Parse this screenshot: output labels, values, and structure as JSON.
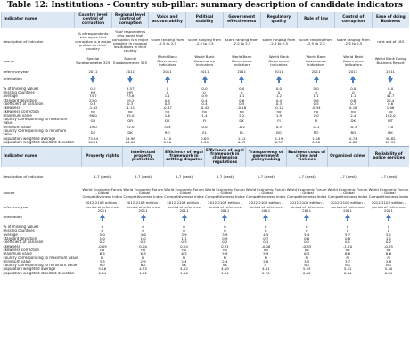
{
  "title": "Table 12: Institutions - Country sub-pillar: summary description of candidate indicators",
  "row_labels": {
    "indicator": "Indicator name",
    "description": "description of indicator",
    "source": "source",
    "reference_year": "reference year",
    "orientation": "orientation"
  },
  "stat_labels": [
    "% of missing values",
    "missing countries",
    "average",
    "standard deviation",
    "coefficient of variation",
    "skewness",
    "skewness correction",
    "maximum value",
    "country corresponding to maximum value",
    "minimum value",
    "country corresponding to minimum value",
    "population weighted average",
    "population weighted standard deviation"
  ],
  "table1": {
    "indicators": [
      {
        "name": "Country level control of corruption",
        "description": "% of respondents who agree that corruption is a major problem in their country",
        "source": "Special Eurobarometer 325",
        "reference_year": "2011",
        "orientation": "down",
        "stats": [
          "0.0",
          "HR",
          "74.7",
          "23.0",
          "0.3",
          "-1.02",
          "no",
          "98.0",
          "GR",
          "19.0",
          "DK",
          "73.34",
          "16.91"
        ]
      },
      {
        "name": "Regional level control of corruption",
        "description": "% of respondents who agree that corruption is a major problem in regional institutions in their country",
        "source": "Special Eurobarometer 325",
        "reference_year": "2011",
        "orientation": "down",
        "stats": [
          "3.57",
          "HR",
          "73.6",
          "19.2",
          "0.3",
          "-1.11",
          "no",
          "95.0",
          "GR",
          "22.0",
          "DK",
          "74.98",
          "14.60"
        ]
      },
      {
        "name": "Voice and accountability",
        "description": "score ranging from -2.5 to 2.5",
        "source": "World Bank Governance Indicators",
        "reference_year": "2011",
        "orientation": "up",
        "stats": [
          "0",
          "0",
          "1.1",
          "0.4",
          "0.3",
          "-0.47",
          "no",
          "1.6",
          "DK",
          "-0.4",
          "RO",
          "1.10",
          "0.26"
        ]
      },
      {
        "name": "Political stability",
        "description": "score ranging from -2.5 to 2.5",
        "source": "World Bank Governance Indicators",
        "reference_year": "2011",
        "orientation": "up",
        "stats": [
          "0.0",
          "0",
          "0.9",
          "0.4",
          "0.4",
          "-0.42",
          "no",
          "1.4",
          "FI",
          "0.0",
          "EL",
          "0.63",
          "0.34"
        ]
      },
      {
        "name": "Government effectiveness",
        "description": "score ranging from -2.5 to 2.5",
        "source": "World Bank Governance Indicators",
        "reference_year": "2011",
        "orientation": "up",
        "stats": [
          "0.0",
          "0",
          "1.1",
          "0.6",
          "0.5",
          "-0.18",
          "no",
          "2.2",
          "DK",
          "-0.2",
          "EL",
          "1.12",
          "0.55"
        ]
      },
      {
        "name": "Regulatory quality",
        "description": "score ranging from -2.5 to 2.5",
        "source": "World Bank Governance Indicators",
        "reference_year": "2011",
        "orientation": "up",
        "stats": [
          "0.0",
          "0",
          "1.2",
          "0.4",
          "0.3",
          "-0.12",
          "no",
          "1.9",
          "FI",
          "0.5",
          "BG",
          "1.19",
          "0.37"
        ]
      },
      {
        "name": "Rule of law",
        "description": "score ranging from -2.5 to 2.5",
        "source": "World Bank Governance Indicators",
        "reference_year": "2011",
        "orientation": "up",
        "stats": [
          "0.0",
          "0",
          "1.1",
          "0.6",
          "0.5",
          "-0.34",
          "no",
          "2.0",
          "FI",
          "-0.1",
          "RO",
          "1.08",
          "0.56"
        ]
      },
      {
        "name": "Control of corruption",
        "description": "score ranging from -2.5 to 2.5",
        "source": "World Bank Governance Indicators",
        "reference_year": "2011",
        "orientation": "up",
        "stats": [
          "0.0",
          "0",
          "1.1",
          "0.8",
          "0.7",
          "0.16",
          "no",
          "2.4",
          "DK",
          "-0.3",
          "BG",
          "0.74",
          "0.82"
        ]
      },
      {
        "name": "Ease of doing Business",
        "description": "rank out of 183",
        "source": "World Bank Doing Business Report",
        "reference_year": "2011",
        "orientation": "down",
        "stats": [
          "0.0",
          "0",
          "41.7",
          "25.4",
          "0.6",
          "1.06",
          "no",
          "102.0",
          "MT",
          "5.0",
          "DK",
          "38.82",
          "22.99"
        ]
      }
    ]
  },
  "table2": {
    "indicators": [
      {
        "name": "Property rights",
        "description": "1-7 (best)",
        "source": "World Economic Forum - Global Competitiveness Index",
        "reference_year": "2012-2103 edition - period of reference 2011",
        "orientation": "up",
        "stats": [
          "0",
          "0",
          "5.0",
          "1.0",
          "0.2",
          "-0.09",
          "no",
          "6.5",
          "FI",
          "3.5",
          "RO",
          "5.16",
          "0.84"
        ]
      },
      {
        "name": "Intellectual property protection",
        "description": "1-7 (best)",
        "source": "World Economic Forum - Global Competitiveness Index",
        "reference_year": "2012-2103 edition - period of reference 2011",
        "orientation": "up",
        "stats": [
          "0",
          "0",
          "4.6",
          "1.0",
          "0.2",
          "0.00",
          "no",
          "6.3",
          "FI",
          "2.9",
          "BG",
          "4.75",
          "1.02"
        ]
      },
      {
        "name": "Efficiency of legal framework in settling disputes",
        "description": "1-7 (best)",
        "source": "World Economic Forum - Global Competitiveness Index",
        "reference_year": "2012-2103 edition - period of reference 2011",
        "orientation": "up",
        "stats": [
          "0",
          "0",
          "3.9",
          "1.1",
          "0.3",
          "0.24",
          "no",
          "6.3",
          "FI",
          "2.4",
          "SK",
          "4.02",
          "1.10"
        ]
      },
      {
        "name": "Efficiency of legal framework in challenging regulations",
        "description": "1-7 (best)",
        "source": "World Economic Forum - Global Competitiveness Index",
        "reference_year": "2012-2103 edition - period of reference 2011",
        "orientation": "up",
        "stats": [
          "0",
          "0",
          "3.9",
          "0.9",
          "0.2",
          "0.21",
          "no",
          "5.9",
          "FI",
          "2.4",
          "SK",
          "4.09",
          "1.04"
        ]
      },
      {
        "name": "Transparency of government policymaking",
        "description": "1-7 (best)",
        "source": "World Economic Forum - Global Competitiveness Index",
        "reference_year": "2012-2103 edition - period of reference 2011",
        "orientation": "up",
        "stats": [
          "0",
          "0",
          "4.5",
          "0.7",
          "0.1",
          "-0.08",
          "no",
          "5.9",
          "FI",
          "2.8",
          "IT",
          "4.41",
          "0.76"
        ]
      },
      {
        "name": "Business costs of crime and violence",
        "description": "1-7 (best)",
        "source": "World Economic Forum - Global Competitiveness Index",
        "reference_year": "2012-2103 edition - period of reference 2011",
        "orientation": "up",
        "stats": [
          "0",
          "0",
          "5.4",
          "0.8",
          "0.1",
          "-0.83",
          "no",
          "6.3",
          "FI",
          "3.5",
          "BG",
          "5.33",
          "0.86"
        ]
      },
      {
        "name": "Organized crime",
        "description": "1-7 (best)",
        "source": "World Economic Forum - Global Competitiveness Index",
        "reference_year": "2012-2103 edition - period of reference 2011",
        "orientation": "up",
        "stats": [
          "0",
          "0",
          "5.7",
          "0.8",
          "0.1",
          "-1.20",
          "no",
          "6.6",
          "FI",
          "3.7",
          "BG",
          "5.51",
          "0.84"
        ]
      },
      {
        "name": "Reliability of police services",
        "description": "1-7 (best)",
        "source": "World Economic Forum - Global Competitiveness Index",
        "reference_year": "2012-2103 edition - period of reference 2011",
        "orientation": "up",
        "stats": [
          "0",
          "0",
          "5.1",
          "1.1",
          "0.2",
          "-0.25",
          "no",
          "6.6",
          "FI",
          "2.8",
          "BG",
          "5.30",
          "0.81"
        ]
      }
    ]
  }
}
